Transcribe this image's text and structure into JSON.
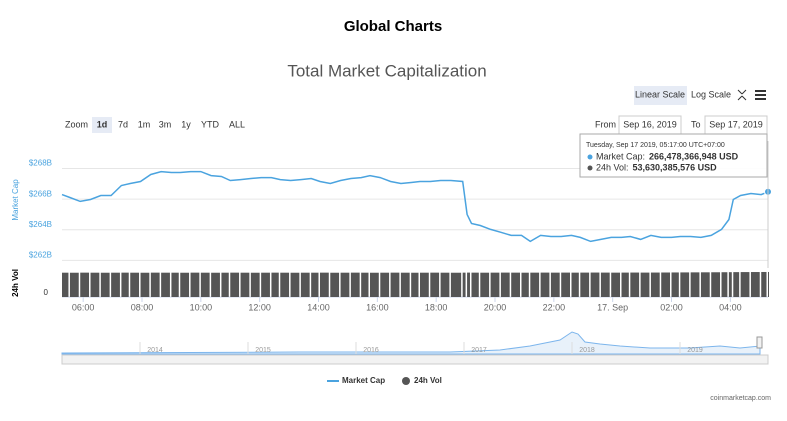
{
  "header": {
    "title": "Global Charts"
  },
  "controls": {
    "scales": [
      "Linear Scale",
      "Log Scale"
    ],
    "zoom_label": "Zoom",
    "zoom": [
      "1d",
      "7d",
      "1m",
      "3m",
      "1y",
      "YTD",
      "ALL"
    ],
    "from_label": "From",
    "from": "Sep 16, 2019",
    "to_label": "To",
    "to": "Sep 17, 2019"
  },
  "chart_data": {
    "type": "line",
    "title": "Total Market Capitalization",
    "ylabel": "Market Cap",
    "y2label": "24h Vol",
    "xlim": [
      5.28,
      29.28
    ],
    "xticks": [
      {
        "value": 6,
        "label": "06:00"
      },
      {
        "value": 8,
        "label": "08:00"
      },
      {
        "value": 10,
        "label": "10:00"
      },
      {
        "value": 12,
        "label": "12:00"
      },
      {
        "value": 14,
        "label": "14:00"
      },
      {
        "value": 16,
        "label": "16:00"
      },
      {
        "value": 18,
        "label": "18:00"
      },
      {
        "value": 20,
        "label": "20:00"
      },
      {
        "value": 22,
        "label": "22:00"
      },
      {
        "value": 24,
        "label": "17. Sep"
      },
      {
        "value": 26,
        "label": "02:00"
      },
      {
        "value": 28,
        "label": "04:00"
      }
    ],
    "ylim": [
      261.5,
      269.8
    ],
    "yticks": [
      {
        "value": 262,
        "label": "$262B"
      },
      {
        "value": 264,
        "label": "$264B"
      },
      {
        "value": 266,
        "label": "$266B"
      },
      {
        "value": 268,
        "label": "$268B"
      }
    ],
    "y2lim": [
      0,
      60
    ],
    "y2ticks": [
      0
    ],
    "grid": true,
    "x": [
      5.28,
      5.55,
      5.9,
      6.25,
      6.6,
      6.95,
      7.3,
      7.6,
      7.95,
      8.3,
      8.65,
      9.0,
      9.3,
      9.65,
      10.0,
      10.35,
      10.7,
      11.0,
      11.35,
      11.7,
      12.05,
      12.4,
      12.7,
      13.05,
      13.4,
      13.75,
      14.05,
      14.4,
      14.75,
      15.1,
      15.45,
      15.75,
      16.1,
      16.45,
      16.8,
      17.15,
      17.45,
      17.8,
      18.15,
      18.5,
      18.9,
      19.05,
      19.2,
      19.5,
      19.85,
      20.2,
      20.55,
      20.9,
      21.2,
      21.55,
      21.9,
      22.25,
      22.6,
      22.9,
      23.25,
      23.6,
      23.95,
      24.3,
      24.6,
      24.95,
      25.3,
      25.65,
      26.0,
      26.3,
      26.65,
      27.0,
      27.35,
      27.7,
      27.95,
      28.1,
      28.35,
      28.7,
      29.05,
      29.28
    ],
    "series": [
      {
        "name": "Market Cap",
        "color": "#4aa3df",
        "values": [
          266.3,
          266.11,
          265.85,
          265.98,
          266.24,
          266.24,
          266.89,
          267.02,
          267.15,
          267.61,
          267.8,
          267.74,
          267.74,
          267.8,
          267.8,
          267.54,
          267.48,
          267.22,
          267.28,
          267.35,
          267.41,
          267.41,
          267.28,
          267.22,
          267.28,
          267.35,
          267.15,
          267.02,
          267.22,
          267.35,
          267.41,
          267.54,
          267.41,
          267.15,
          267.02,
          267.09,
          267.15,
          267.15,
          267.22,
          267.22,
          267.15,
          265.0,
          264.41,
          264.28,
          264.02,
          263.83,
          263.63,
          263.63,
          263.24,
          263.63,
          263.56,
          263.56,
          263.63,
          263.5,
          263.24,
          263.37,
          263.5,
          263.5,
          263.56,
          263.37,
          263.63,
          263.5,
          263.5,
          263.56,
          263.56,
          263.5,
          263.63,
          264.02,
          264.67,
          265.98,
          266.24,
          266.37,
          266.3,
          266.48
        ]
      },
      {
        "name": "24h Vol",
        "color": "#555555",
        "axis": "y2",
        "values": [
          52.1,
          52.0,
          52.2,
          52.1,
          52.0,
          52.1,
          52.2,
          52.1,
          52.0,
          52.2,
          52.1,
          52.1,
          52.0,
          52.2,
          52.1,
          52.0,
          52.1,
          52.2,
          52.1,
          52.0,
          52.1,
          52.2,
          52.1,
          52.0,
          52.1,
          52.1,
          52.2,
          52.0,
          52.1,
          52.2,
          52.1,
          52.0,
          52.1,
          52.2,
          52.1,
          52.0,
          52.1,
          52.2,
          52.1,
          52.0,
          52.2,
          52.3,
          52.2,
          52.1,
          52.2,
          52.3,
          52.2,
          52.1,
          52.2,
          52.3,
          52.2,
          52.3,
          52.2,
          52.3,
          52.4,
          52.3,
          52.2,
          52.3,
          52.4,
          52.3,
          52.4,
          52.5,
          52.6,
          52.7,
          52.8,
          52.9,
          53.0,
          53.1,
          53.2,
          53.3,
          53.4,
          53.5,
          53.6,
          53.63
        ]
      }
    ],
    "tooltip": {
      "date": "Tuesday, Sep 17 2019, 05:17:00 UTC+07:00",
      "rows": [
        {
          "label": "Market Cap:",
          "value": "266,478,366,948 USD"
        },
        {
          "label": "24h Vol:",
          "value": "53,630,385,576 USD"
        }
      ]
    },
    "navigator_labels": [
      "2014",
      "2015",
      "2016",
      "2017",
      "2018",
      "2019"
    ],
    "credit": "coinmarketcap.com"
  }
}
